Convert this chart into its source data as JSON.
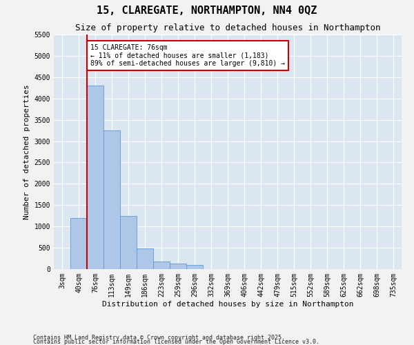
{
  "title_line1": "15, CLAREGATE, NORTHAMPTON, NN4 0QZ",
  "title_line2": "Size of property relative to detached houses in Northampton",
  "xlabel": "Distribution of detached houses by size in Northampton",
  "ylabel": "Number of detached properties",
  "categories": [
    "3sqm",
    "40sqm",
    "76sqm",
    "113sqm",
    "149sqm",
    "186sqm",
    "223sqm",
    "259sqm",
    "296sqm",
    "332sqm",
    "369sqm",
    "406sqm",
    "442sqm",
    "479sqm",
    "515sqm",
    "552sqm",
    "589sqm",
    "625sqm",
    "662sqm",
    "698sqm",
    "735sqm"
  ],
  "values": [
    0,
    1200,
    4300,
    3250,
    1250,
    480,
    180,
    130,
    95,
    0,
    0,
    0,
    0,
    0,
    0,
    0,
    0,
    0,
    0,
    0,
    0
  ],
  "bar_color": "#aec6e8",
  "bar_edge_color": "#5b9bd5",
  "red_line_index": 2,
  "annotation_title": "15 CLAREGATE: 76sqm",
  "annotation_line1": "← 11% of detached houses are smaller (1,183)",
  "annotation_line2": "89% of semi-detached houses are larger (9,810) →",
  "annotation_box_color": "#ffffff",
  "annotation_box_edge_color": "#cc0000",
  "red_line_color": "#cc0000",
  "ylim_max": 5500,
  "yticks": [
    0,
    500,
    1000,
    1500,
    2000,
    2500,
    3000,
    3500,
    4000,
    4500,
    5000,
    5500
  ],
  "bg_color": "#dce6f1",
  "grid_color": "#ffffff",
  "fig_bg_color": "#f2f2f2",
  "footer_line1": "Contains HM Land Registry data © Crown copyright and database right 2025.",
  "footer_line2": "Contains public sector information licensed under the Open Government Licence v3.0.",
  "title_fontsize": 11,
  "subtitle_fontsize": 9,
  "ylabel_fontsize": 8,
  "xlabel_fontsize": 8,
  "tick_fontsize": 7,
  "annot_fontsize": 7,
  "footer_fontsize": 6
}
